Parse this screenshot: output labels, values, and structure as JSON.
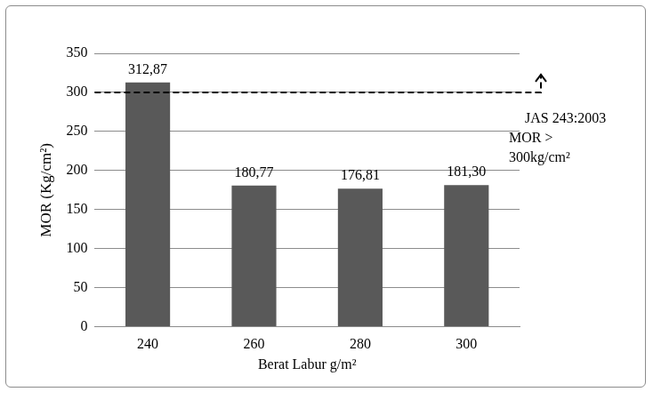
{
  "chart_data": {
    "type": "bar",
    "x_label": "Berat Labur g/m²",
    "y_label": "MOR (Kg/cm²)",
    "categories": [
      "240",
      "260",
      "280",
      "300"
    ],
    "values": [
      312.87,
      180.77,
      176.81,
      181.3
    ],
    "value_labels": [
      "312,87",
      "180,77",
      "176,81",
      "181,30"
    ],
    "data_labels": true,
    "color": "#595959",
    "ylim": [
      0,
      350
    ],
    "yticks": [
      0,
      50,
      100,
      150,
      200,
      250,
      300,
      350
    ],
    "grid": true,
    "threshold": 300,
    "annotations": [
      "JAS 243:2003",
      "MOR >",
      "300kg/cm²"
    ]
  }
}
